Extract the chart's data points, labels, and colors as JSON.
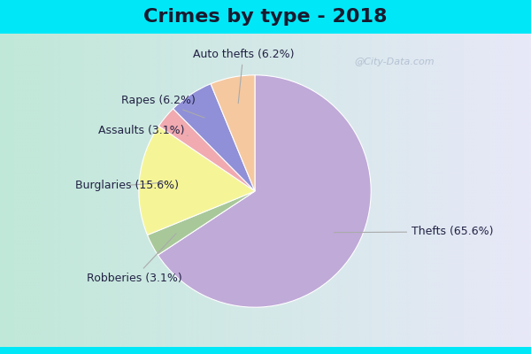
{
  "title": "Crimes by type - 2018",
  "order_labels": [
    "Thefts (65.6%)",
    "Robberies (3.1%)",
    "Burglaries (15.6%)",
    "Assaults (3.1%)",
    "Rapes (6.2%)",
    "Auto thefts (6.2%)"
  ],
  "order_pct": [
    65.6,
    3.1,
    15.6,
    3.1,
    6.2,
    6.2
  ],
  "order_colors": [
    "#c0aad8",
    "#a8c89a",
    "#f5f598",
    "#f0aab0",
    "#9090d8",
    "#f5c8a0"
  ],
  "bg_cyan": "#00e8f8",
  "bg_grad_left": "#c0e8d8",
  "bg_grad_right": "#e8e8f8",
  "title_fontsize": 16,
  "label_fontsize": 9,
  "watermark": "@City-Data.com"
}
